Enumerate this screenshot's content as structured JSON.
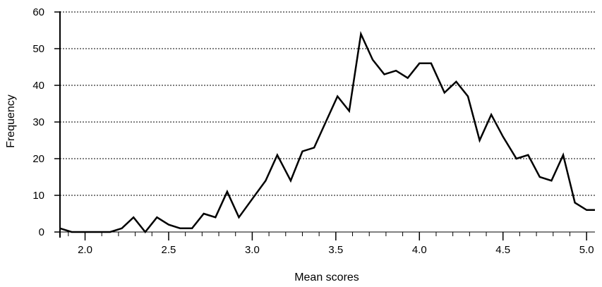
{
  "chart_data": {
    "type": "line",
    "xlabel": "Mean scores",
    "ylabel": "Frequency",
    "xlim": [
      1.85,
      5.05
    ],
    "ylim": [
      0,
      60
    ],
    "x_ticks": [
      2.0,
      2.5,
      3.0,
      3.5,
      4.0,
      4.5,
      5.0
    ],
    "x_tick_labels": [
      "2.0",
      "2.5",
      "3.0",
      "3.5",
      "4.0",
      "4.5",
      "5.0"
    ],
    "y_ticks": [
      0,
      10,
      20,
      30,
      40,
      50,
      60
    ],
    "y_tick_labels": [
      "0",
      "10",
      "20",
      "30",
      "40",
      "50",
      "60"
    ],
    "grid": "horizontal dotted",
    "line_color": "#000000",
    "series": [
      {
        "x": [
          1.85,
          1.92,
          2.0,
          2.08,
          2.15,
          2.22,
          2.29,
          2.36,
          2.43,
          2.5,
          2.57,
          2.64,
          2.71,
          2.78,
          2.85,
          2.92,
          3.0,
          3.08,
          3.15,
          3.23,
          3.3,
          3.37,
          3.44,
          3.51,
          3.58,
          3.65,
          3.72,
          3.79,
          3.86,
          3.93,
          4.0,
          4.07,
          4.15,
          4.22,
          4.29,
          4.36,
          4.43,
          4.5,
          4.58,
          4.65,
          4.72,
          4.79,
          4.86,
          4.93,
          5.0,
          5.05
        ],
        "y": [
          1,
          0,
          0,
          0,
          0,
          1,
          4,
          0,
          4,
          2,
          1,
          1,
          5,
          4,
          11,
          4,
          9,
          14,
          21,
          14,
          22,
          23,
          30,
          37,
          33,
          54,
          47,
          43,
          44,
          42,
          46,
          46,
          38,
          41,
          37,
          25,
          32,
          26,
          20,
          21,
          15,
          14,
          21,
          8,
          6,
          6
        ]
      }
    ]
  }
}
